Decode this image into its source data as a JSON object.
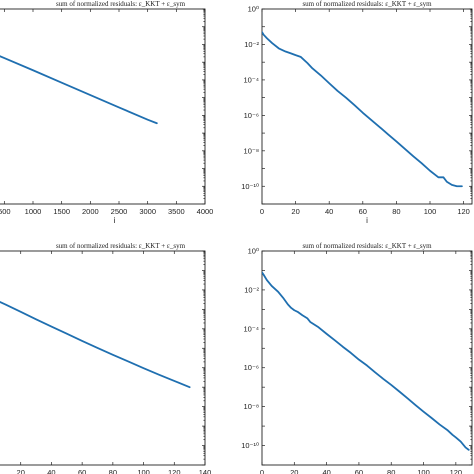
{
  "colors": {
    "series": "#1f6fb0",
    "axes": "#222222"
  },
  "chart_data": [
    {
      "type": "line",
      "title": "sum of normalized residuals: ε_KKT + ε_sym",
      "xlabel": "i",
      "ylabel": "",
      "yscale": "log",
      "xlim": [
        250,
        4000
      ],
      "ylim": [
        1e-11,
        1
      ],
      "xticks": [
        500,
        1000,
        1500,
        2000,
        2500,
        3000,
        3500,
        4000
      ],
      "xtick_labels": [
        "500",
        "1000",
        "1500",
        "2000",
        "2500",
        "3000",
        "3500",
        "4000"
      ],
      "yticks": [],
      "ytick_labels": [],
      "grid": false,
      "series": [
        {
          "x": [
            250,
            320,
            500,
            1000,
            1500,
            2000,
            2500,
            3000,
            3160
          ],
          "y": [
            0.0045,
            0.003,
            0.0017,
            0.00035,
            7e-05,
            1.4e-05,
            2.8e-06,
            5.7e-07,
            3.6e-07
          ]
        }
      ]
    },
    {
      "type": "line",
      "title": "sum of normalized residuals: ε_KKT + ε_sym",
      "xlabel": "i",
      "ylabel": "",
      "yscale": "log",
      "xlim": [
        0,
        125
      ],
      "ylim": [
        1e-11,
        1
      ],
      "xticks": [
        0,
        20,
        40,
        60,
        80,
        100,
        120
      ],
      "xtick_labels": [
        "0",
        "20",
        "40",
        "60",
        "80",
        "100",
        "120"
      ],
      "yticks": [
        1,
        0.01,
        0.0001,
        1e-06,
        1e-08,
        1e-10
      ],
      "ytick_labels": [
        "10⁰",
        "10⁻²",
        "10⁻⁴",
        "10⁻⁶",
        "10⁻⁸",
        "10⁻¹⁰"
      ],
      "grid": false,
      "series": [
        {
          "x": [
            0,
            1,
            3,
            6,
            10,
            14,
            17,
            20,
            23,
            27,
            30,
            35,
            40,
            45,
            50,
            55,
            60,
            65,
            70,
            75,
            80,
            85,
            90,
            95,
            100,
            103,
            105,
            108,
            110,
            113,
            116,
            118,
            119
          ],
          "y": [
            0.05,
            0.035,
            0.022,
            0.012,
            0.006,
            0.004,
            0.0032,
            0.0025,
            0.002,
            0.0009,
            0.00045,
            0.00018,
            6.5e-05,
            2.4e-05,
            1e-05,
            3.8e-06,
            1.4e-06,
            5.5e-07,
            2.2e-07,
            8.5e-08,
            3.4e-08,
            1.3e-08,
            5e-09,
            2e-09,
            7.5e-10,
            4.5e-10,
            3.2e-10,
            3.2e-10,
            1.8e-10,
            1.2e-10,
            1e-10,
            1e-10,
            1e-10
          ]
        }
      ]
    },
    {
      "type": "line",
      "title": "sum of normalized residuals: ε_KKT + ε_sym",
      "xlabel": "i",
      "ylabel": "",
      "yscale": "log",
      "xlim": [
        0,
        140
      ],
      "ylim": [
        1e-11,
        1
      ],
      "xticks": [
        20,
        40,
        60,
        80,
        100,
        120,
        140
      ],
      "xtick_labels": [
        "20",
        "40",
        "60",
        "80",
        "100",
        "120",
        "140"
      ],
      "yticks": [],
      "ytick_labels": [],
      "grid": false,
      "series": [
        {
          "x": [
            0,
            10,
            20,
            30,
            40,
            50,
            60,
            70,
            80,
            90,
            100,
            110,
            120,
            130
          ],
          "y": [
            0.004,
            0.0018,
            0.00075,
            0.00031,
            0.00013,
            5.6e-05,
            2.4e-05,
            1.04e-05,
            4.6e-06,
            2.1e-06,
            9.5e-07,
            4.4e-07,
            2.1e-07,
            1e-07
          ]
        }
      ]
    },
    {
      "type": "line",
      "title": "sum of normalized residuals: ε_KKT + ε_sym",
      "xlabel": "i",
      "ylabel": "",
      "yscale": "log",
      "xlim": [
        0,
        130
      ],
      "ylim": [
        1e-11,
        1
      ],
      "xticks": [
        0,
        20,
        40,
        60,
        80,
        100,
        120
      ],
      "xtick_labels": [
        "0",
        "20",
        "40",
        "60",
        "80",
        "100",
        "120"
      ],
      "yticks": [
        1,
        0.01,
        0.0001,
        1e-06,
        1e-08,
        1e-10
      ],
      "ytick_labels": [
        "10⁰",
        "10⁻²",
        "10⁻⁴",
        "10⁻⁶",
        "10⁻⁸",
        "10⁻¹⁰"
      ],
      "grid": false,
      "series": [
        {
          "x": [
            0,
            1,
            3,
            6,
            10,
            13,
            16,
            18,
            20,
            22,
            25,
            28,
            30,
            35,
            40,
            45,
            50,
            55,
            60,
            65,
            70,
            75,
            80,
            85,
            90,
            95,
            100,
            105,
            110,
            115,
            118,
            120,
            123,
            126,
            128
          ],
          "y": [
            0.08,
            0.06,
            0.032,
            0.016,
            0.008,
            0.004,
            0.0018,
            0.0012,
            0.0009,
            0.00075,
            0.0005,
            0.00035,
            0.00022,
            0.00012,
            5.5e-05,
            2.6e-05,
            1.2e-05,
            5.8e-06,
            2.6e-06,
            1.3e-06,
            5.8e-07,
            2.7e-07,
            1.3e-07,
            6e-08,
            2.7e-08,
            1.2e-08,
            5.5e-09,
            2.6e-09,
            1.2e-09,
            6e-10,
            3.5e-10,
            2.6e-10,
            1.6e-10,
            8e-11,
            6e-11
          ]
        }
      ]
    }
  ]
}
